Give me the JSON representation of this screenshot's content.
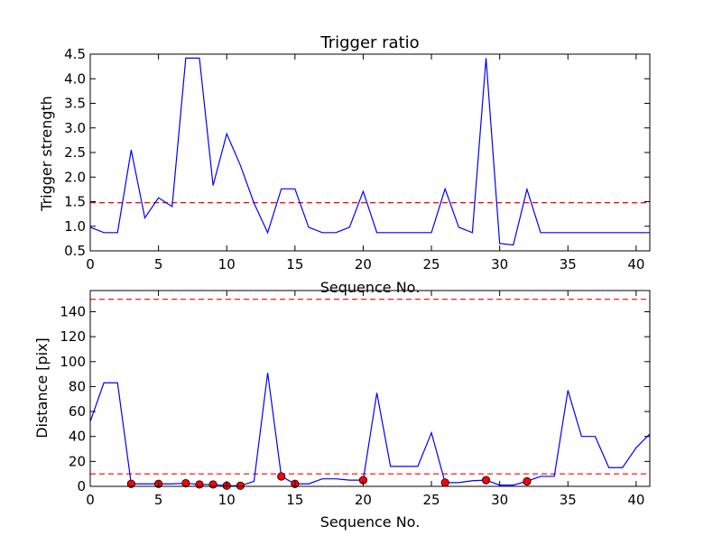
{
  "chart_data": [
    {
      "type": "line",
      "title": "Trigger ratio",
      "xlabel": "Sequence No.",
      "ylabel": "Trigger strength",
      "xlim": [
        0,
        41
      ],
      "ylim": [
        0.5,
        4.5
      ],
      "xticks": [
        0,
        5,
        10,
        15,
        20,
        25,
        30,
        35,
        40
      ],
      "yticks": [
        0.5,
        1.0,
        1.5,
        2.0,
        2.5,
        3.0,
        3.5,
        4.0,
        4.5
      ],
      "grid": false,
      "line_color": "#0000ff",
      "threshold_color": "#ff0000",
      "threshold": 1.48,
      "series": [
        {
          "x": [
            0,
            1,
            2,
            3,
            4,
            5,
            6,
            7,
            8,
            9,
            10,
            11,
            12,
            13,
            14,
            15,
            16,
            17,
            18,
            19,
            20,
            21,
            22,
            23,
            24,
            25,
            26,
            27,
            28,
            29,
            30,
            31,
            32,
            33,
            34,
            35,
            36,
            37,
            38,
            39,
            40,
            41
          ],
          "values": [
            0.98,
            0.87,
            0.87,
            2.55,
            1.17,
            1.58,
            1.4,
            4.42,
            4.42,
            1.83,
            2.88,
            2.24,
            1.47,
            0.87,
            1.76,
            1.76,
            0.98,
            0.87,
            0.87,
            0.98,
            1.71,
            0.87,
            0.87,
            0.87,
            0.87,
            0.87,
            1.76,
            0.98,
            0.87,
            4.42,
            0.65,
            0.62,
            1.75,
            0.87,
            0.87,
            0.87,
            0.87,
            0.87,
            0.87,
            0.87,
            0.87,
            0.87
          ]
        }
      ]
    },
    {
      "type": "line",
      "title": "",
      "xlabel": "Sequence No.",
      "ylabel": "Distance [pix]",
      "xlim": [
        0,
        41
      ],
      "ylim": [
        0,
        157
      ],
      "xticks": [
        0,
        5,
        10,
        15,
        20,
        25,
        30,
        35,
        40
      ],
      "yticks": [
        0,
        20,
        40,
        60,
        80,
        100,
        120,
        140
      ],
      "grid": false,
      "line_color": "#0000ff",
      "threshold_color": "#ff0000",
      "marker_color": "#ff0000",
      "thresholds": [
        150,
        10
      ],
      "series": [
        {
          "x": [
            0,
            1,
            2,
            3,
            4,
            5,
            6,
            7,
            8,
            9,
            10,
            11,
            12,
            13,
            14,
            15,
            16,
            17,
            18,
            19,
            20,
            21,
            22,
            23,
            24,
            25,
            26,
            27,
            28,
            29,
            30,
            31,
            32,
            33,
            34,
            35,
            36,
            37,
            38,
            39,
            40,
            41
          ],
          "values": [
            52,
            83,
            83,
            2,
            2,
            2,
            2,
            2.5,
            1.5,
            1.5,
            0.5,
            0.5,
            4,
            91,
            8,
            2,
            2,
            6,
            6,
            5,
            5,
            75,
            16,
            16,
            16,
            43,
            3,
            3,
            4.5,
            5,
            1,
            1,
            4,
            8,
            8,
            77,
            40,
            40,
            15,
            15,
            31,
            42
          ]
        }
      ],
      "markers": {
        "x": [
          3,
          5,
          7,
          8,
          9,
          10,
          11,
          14,
          15,
          20,
          26,
          29,
          32
        ],
        "values": [
          2,
          2,
          2.5,
          1.5,
          1.5,
          0.5,
          0.5,
          8,
          2,
          5,
          3,
          5,
          4
        ]
      }
    }
  ]
}
